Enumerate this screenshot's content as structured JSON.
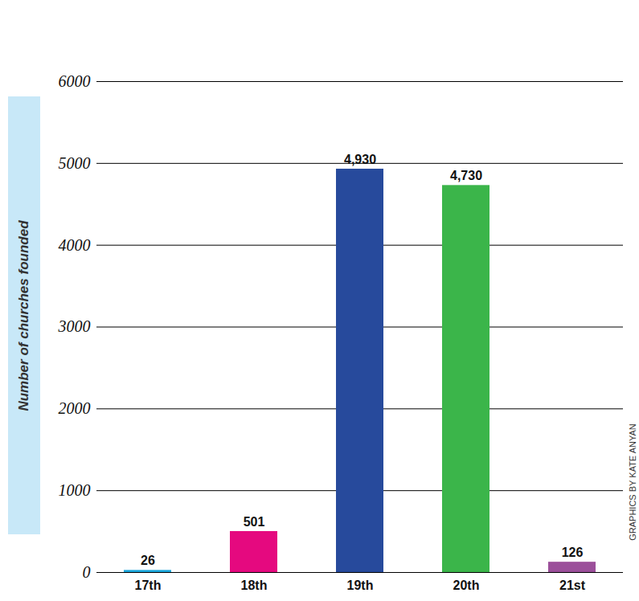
{
  "chart_data": {
    "type": "bar",
    "categories": [
      "17th",
      "18th",
      "19th",
      "20th",
      "21st"
    ],
    "values": [
      26,
      501,
      4930,
      4730,
      126
    ],
    "value_labels": [
      "26",
      "501",
      "4,930",
      "4,730",
      "126"
    ],
    "colors": [
      "#1aa7dc",
      "#e5097f",
      "#274a9c",
      "#3bb54a",
      "#9b4f9a"
    ],
    "ylabel": "Number of churches founded",
    "ylim": [
      0,
      6000
    ],
    "yticks": [
      0,
      1000,
      2000,
      3000,
      4000,
      5000,
      6000
    ],
    "grid": true,
    "data_labels": true,
    "annotations": [
      "GRAPHICS BY KATE ANYAN"
    ]
  }
}
